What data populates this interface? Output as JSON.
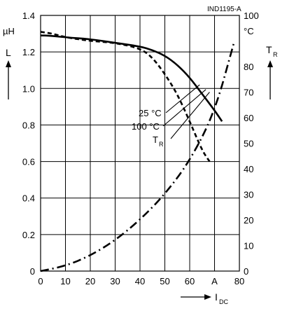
{
  "chart_data": {
    "type": "line",
    "code": "IND1195-A",
    "x": {
      "label": "I",
      "label_sub": "DC",
      "unit": "A",
      "range": [
        0,
        80
      ],
      "ticks": [
        "0",
        "10",
        "20",
        "30",
        "40",
        "50",
        "60",
        "A",
        "80"
      ],
      "tick_values": [
        0,
        10,
        20,
        30,
        40,
        50,
        60,
        70,
        80
      ]
    },
    "y_left": {
      "label": "L",
      "unit": "µH",
      "range": [
        0,
        1.4
      ],
      "ticks": [
        "0",
        "0.2",
        "0.4",
        "0.6",
        "0.8",
        "1.0",
        "1.2",
        "1.4"
      ],
      "tick_values": [
        0,
        0.2,
        0.4,
        0.6,
        0.8,
        1.0,
        1.2,
        1.4
      ]
    },
    "y_right": {
      "label": "T",
      "label_sub": "R",
      "unit": "°C",
      "range": [
        0,
        100
      ],
      "ticks": [
        "0",
        "10",
        "20",
        "30",
        "40",
        "50",
        "60",
        "70",
        "80",
        "100"
      ],
      "tick_values": [
        0,
        10,
        20,
        30,
        40,
        50,
        60,
        70,
        80,
        100
      ]
    },
    "grid": true,
    "series": [
      {
        "name": "25°C",
        "axis": "left",
        "style": "solid",
        "x": [
          0,
          3,
          10,
          20,
          30,
          40,
          45,
          50,
          55,
          60,
          65,
          70,
          73
        ],
        "y": [
          1.29,
          1.29,
          1.28,
          1.27,
          1.25,
          1.23,
          1.21,
          1.18,
          1.13,
          1.06,
          0.97,
          0.88,
          0.82
        ]
      },
      {
        "name": "100°C",
        "axis": "left",
        "style": "dashed",
        "x": [
          0,
          5,
          10,
          20,
          30,
          40,
          45,
          50,
          55,
          60,
          65,
          68
        ],
        "y": [
          1.31,
          1.3,
          1.28,
          1.26,
          1.25,
          1.22,
          1.17,
          1.08,
          0.97,
          0.82,
          0.66,
          0.6
        ]
      },
      {
        "name": "T_R",
        "axis": "right",
        "style": "dash-dot",
        "x": [
          0,
          10,
          20,
          30,
          40,
          50,
          60,
          70,
          78
        ],
        "y": [
          0,
          2,
          6,
          12,
          20,
          30,
          43,
          62,
          90
        ]
      }
    ],
    "annotations": [
      {
        "text": "25 °C",
        "label_id": "lbl_25"
      },
      {
        "text": "100 °C",
        "label_id": "lbl_100"
      },
      {
        "text": "T",
        "sub": "R",
        "label_id": "lbl_tr"
      }
    ]
  }
}
